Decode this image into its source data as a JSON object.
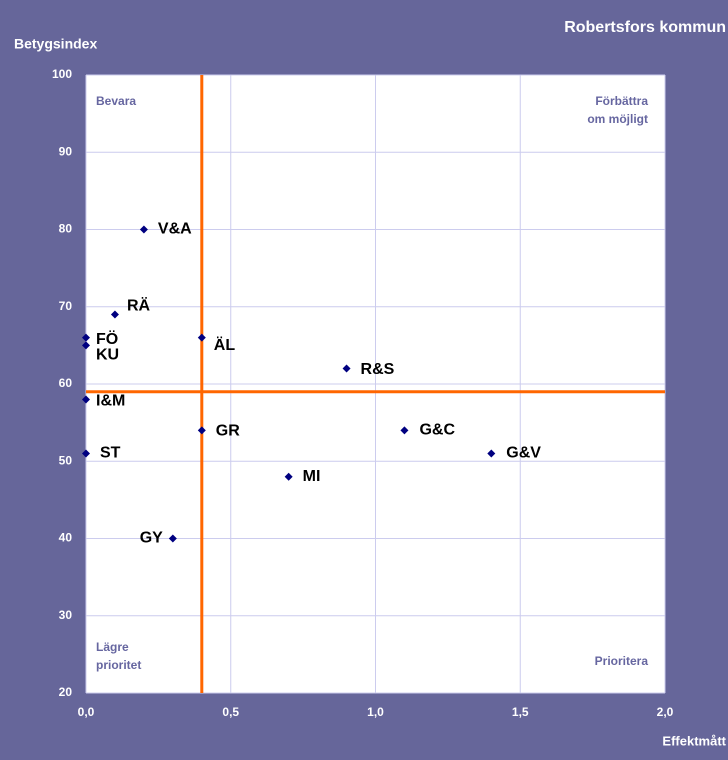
{
  "chart_data": {
    "type": "scatter",
    "title": "Robertsfors kommun",
    "y_label": "Betygsindex",
    "x_label": "Effektmått",
    "series": [
      {
        "color": "#000080",
        "labels": [
          "V&A",
          "RÄ",
          "FÖ",
          "KU",
          "ÄL",
          "R&S",
          "I&M",
          "GR",
          "G&C",
          "ST",
          "G&V",
          "MI",
          "GY"
        ],
        "x": [
          0.2,
          0.1,
          0,
          0,
          0.4,
          0.9,
          0,
          0.4,
          1.1,
          0,
          1.4,
          0.7,
          0.3
        ],
        "values": [
          80,
          69,
          66,
          65,
          66,
          62,
          58,
          54,
          54,
          51,
          51,
          48,
          40
        ]
      }
    ],
    "reference_lines": {
      "x": 0.4,
      "y": 59,
      "color": "#ff6600"
    },
    "quadrant_labels": {
      "top_left": [
        "Bevara"
      ],
      "top_right": [
        "Förbättra",
        "om möjligt"
      ],
      "bottom_left": [
        "Lägre",
        "prioritet"
      ],
      "bottom_right": [
        "Prioritera"
      ]
    },
    "xlim": [
      0,
      2
    ],
    "ylim": [
      20,
      100
    ],
    "xticks": [
      {
        "value": 0,
        "label": "0,0"
      },
      {
        "value": 0.5,
        "label": "0,5"
      },
      {
        "value": 1,
        "label": "1,0"
      },
      {
        "value": 1.5,
        "label": "1,5"
      },
      {
        "value": 2,
        "label": "2,0"
      }
    ],
    "yticks": [
      20,
      30,
      40,
      50,
      60,
      70,
      80,
      90,
      100
    ],
    "grid": true
  }
}
